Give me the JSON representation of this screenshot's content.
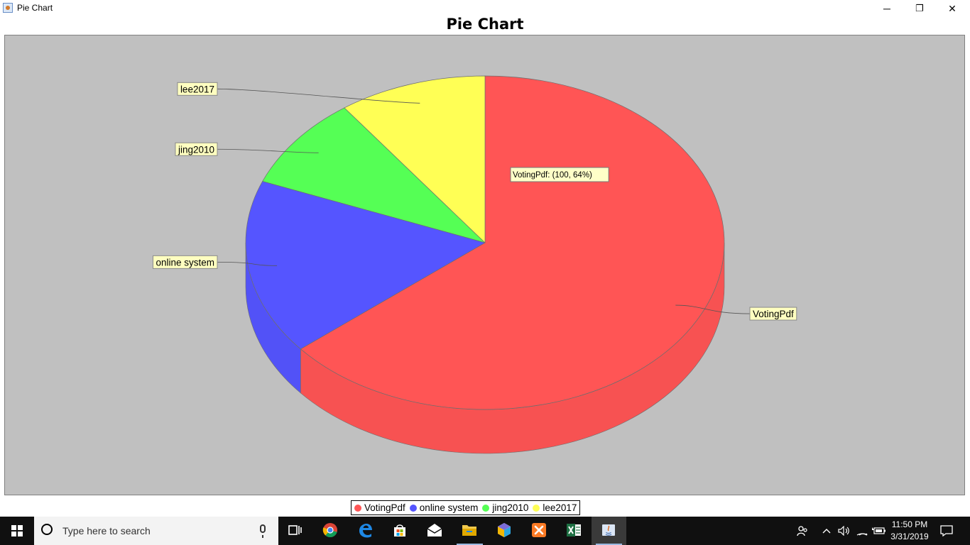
{
  "window": {
    "title": "Pie Chart",
    "minimize_label": "─",
    "restore_label": "❐",
    "close_label": "✕"
  },
  "chart_data": {
    "type": "pie",
    "title": "Pie Chart",
    "categories": [
      "VotingPdf",
      "online system",
      "jing2010",
      "lee2017"
    ],
    "values": [
      64,
      17,
      9,
      10
    ],
    "colors": [
      "#ff5555",
      "#5555ff",
      "#55ff55",
      "#ffff55"
    ],
    "three_d": true,
    "tooltip": "VotingPdf: (100, 64%)",
    "legend_position": "bottom",
    "legend": [
      "VotingPdf",
      "online system",
      "jing2010",
      "lee2017"
    ]
  },
  "taskbar": {
    "search_placeholder": "Type here to search",
    "apps": [
      {
        "icon": "task-view-icon"
      },
      {
        "icon": "chrome-icon",
        "color": "#db4437"
      },
      {
        "icon": "edge-icon",
        "color": "#1e88e5"
      },
      {
        "icon": "store-icon"
      },
      {
        "icon": "mail-icon"
      },
      {
        "icon": "file-explorer-icon",
        "color": "#f2c94c"
      },
      {
        "icon": "app-cube-icon"
      },
      {
        "icon": "xampp-icon",
        "color": "#fb7a24"
      },
      {
        "icon": "excel-icon",
        "color": "#1d6f42"
      },
      {
        "icon": "java-icon"
      }
    ],
    "clock": {
      "time": "11:50 PM",
      "date": "3/31/2019"
    }
  }
}
